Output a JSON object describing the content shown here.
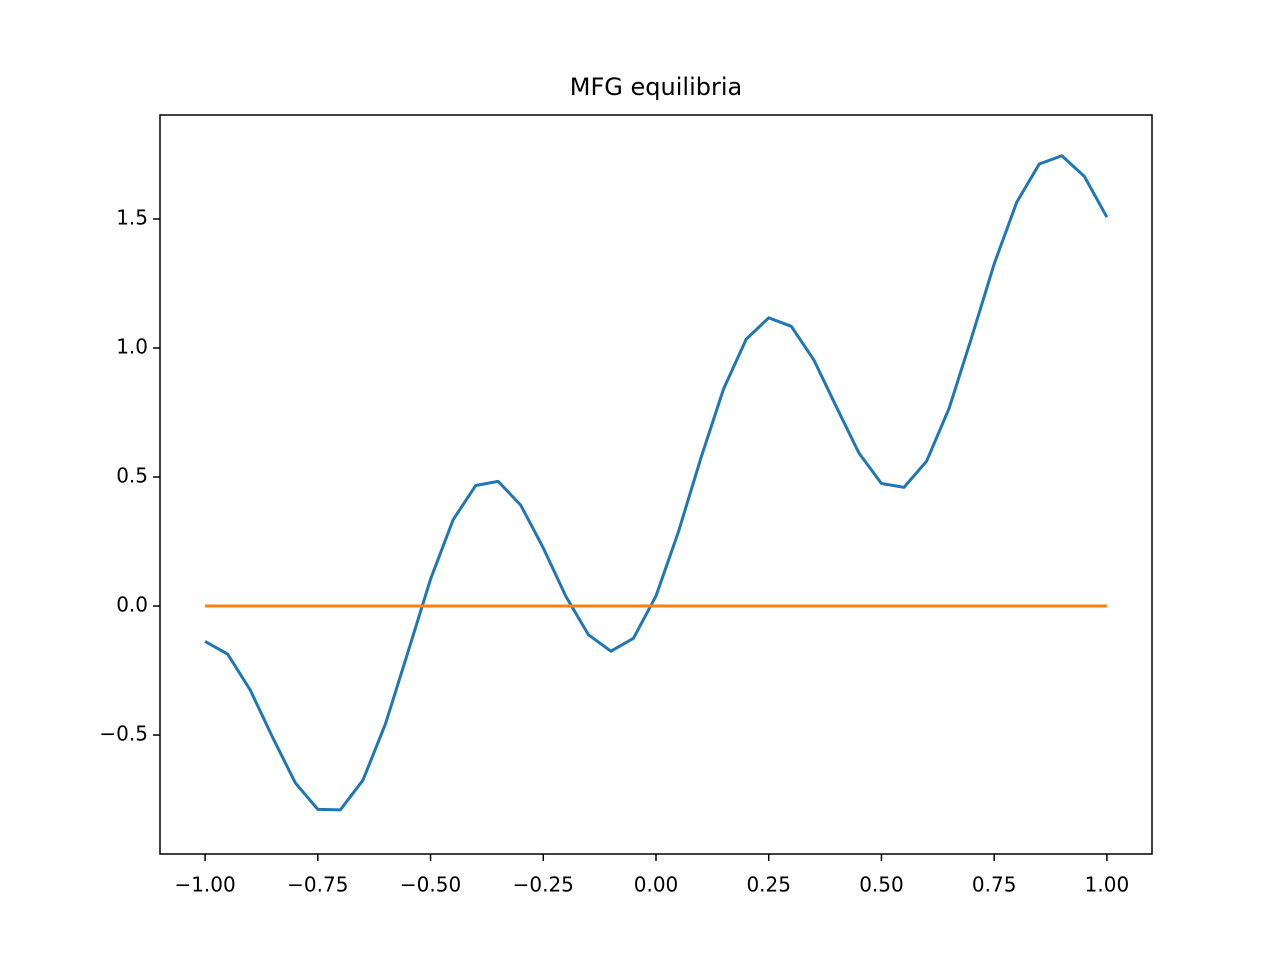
{
  "chart_data": {
    "type": "line",
    "title": "MFG equilibria",
    "x": [
      -1.0,
      -0.95,
      -0.9,
      -0.85,
      -0.8,
      -0.75,
      -0.7,
      -0.65,
      -0.6,
      -0.55,
      -0.5,
      -0.45,
      -0.4,
      -0.35,
      -0.3,
      -0.25,
      -0.2,
      -0.15,
      -0.1,
      -0.05,
      0.0,
      0.05,
      0.1,
      0.15,
      0.2,
      0.25,
      0.3,
      0.35,
      0.4,
      0.45,
      0.5,
      0.55,
      0.6,
      0.65,
      0.7,
      0.75,
      0.8,
      0.85,
      0.9,
      0.95,
      1.0
    ],
    "series": [
      {
        "color": "#1f77b4",
        "values": [
          -0.137,
          -0.186,
          -0.325,
          -0.51,
          -0.685,
          -0.788,
          -0.79,
          -0.675,
          -0.457,
          -0.178,
          0.104,
          0.334,
          0.467,
          0.483,
          0.391,
          0.225,
          0.038,
          -0.111,
          -0.175,
          -0.125,
          0.039,
          0.289,
          0.576,
          0.842,
          1.034,
          1.117,
          1.084,
          0.954,
          0.772,
          0.593,
          0.475,
          0.46,
          0.561,
          0.766,
          1.041,
          1.326,
          1.565,
          1.713,
          1.745,
          1.665,
          1.507
        ]
      },
      {
        "color": "#ff7f0e",
        "values": [
          0,
          0,
          0,
          0,
          0,
          0,
          0,
          0,
          0,
          0,
          0,
          0,
          0,
          0,
          0,
          0,
          0,
          0,
          0,
          0,
          0,
          0,
          0,
          0,
          0,
          0,
          0,
          0,
          0,
          0,
          0,
          0,
          0,
          0,
          0,
          0,
          0,
          0,
          0,
          0,
          0
        ]
      }
    ],
    "xlim": [
      -1.1,
      1.1
    ],
    "ylim": [
      -0.961,
      1.903
    ],
    "xticks": [
      {
        "value": -1.0,
        "label": "−1.00"
      },
      {
        "value": -0.75,
        "label": "−0.75"
      },
      {
        "value": -0.5,
        "label": "−0.50"
      },
      {
        "value": -0.25,
        "label": "−0.25"
      },
      {
        "value": 0.0,
        "label": "0.00"
      },
      0.25,
      {
        "value": 0.5,
        "label": "0.50"
      },
      0.75,
      {
        "value": 1.0,
        "label": "1.00"
      }
    ],
    "yticks": [
      {
        "value": -0.5,
        "label": "−0.5"
      },
      {
        "value": 0.0,
        "label": "0.0"
      },
      0.5,
      {
        "value": 1.0,
        "label": "1.0"
      },
      1.5
    ],
    "grid": false
  }
}
